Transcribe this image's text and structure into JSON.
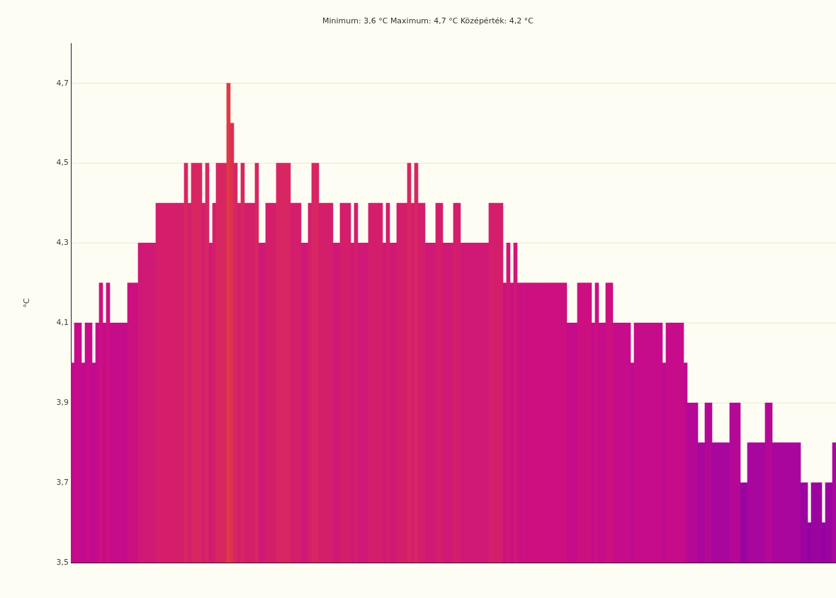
{
  "chart_data": {
    "type": "bar",
    "title": "Minimum: 3,6 °C Maximum: 4,7 °C Középérték: 4,2 °C",
    "ylabel": "°C",
    "categories": [
      null,
      null,
      null,
      null,
      null,
      null,
      null,
      null,
      null,
      null,
      null,
      null,
      null,
      null,
      null,
      null,
      null,
      null,
      null,
      null,
      null,
      null,
      null,
      null,
      null,
      null,
      null,
      null,
      null,
      null,
      null,
      null,
      null,
      null,
      null,
      null,
      null,
      null,
      null,
      null,
      null,
      null,
      null,
      null,
      null,
      null,
      null,
      null,
      null,
      null,
      null,
      null,
      null,
      null,
      null,
      null,
      null,
      null,
      null,
      null,
      null,
      null,
      null,
      null,
      null,
      null,
      null,
      null,
      null,
      null,
      null,
      null,
      null,
      null,
      null,
      null,
      null,
      null,
      null,
      null,
      null,
      null,
      null,
      null,
      null,
      null,
      null,
      null,
      null,
      null,
      null,
      null,
      null,
      null,
      null,
      null,
      null,
      null,
      null,
      null,
      null,
      null,
      null,
      null,
      null,
      null,
      null,
      null,
      null,
      null,
      null,
      null,
      null,
      null,
      null,
      null,
      null,
      null,
      null,
      null,
      null,
      null,
      null,
      null,
      null,
      null,
      null,
      null,
      null,
      null,
      null,
      null,
      null,
      null,
      null,
      null,
      null,
      null,
      null,
      null,
      null,
      null,
      null,
      null,
      null,
      null,
      null,
      null,
      null,
      null,
      null,
      null,
      null,
      null,
      null,
      null,
      null,
      null,
      null,
      null,
      null,
      null,
      null,
      null,
      null,
      null,
      null,
      null,
      null,
      null,
      null,
      null,
      null,
      null,
      null,
      null,
      null,
      null,
      null,
      null,
      null,
      null,
      null,
      null,
      null,
      null,
      null,
      null,
      null,
      null,
      null,
      null,
      null,
      null,
      null,
      null,
      null,
      null,
      null,
      null,
      null,
      null,
      null,
      null,
      null,
      null,
      null,
      null,
      null,
      null,
      null,
      null,
      null,
      null,
      null,
      null
    ],
    "values": [
      4.0,
      4.1,
      4.1,
      4.0,
      4.1,
      4.1,
      4.0,
      4.1,
      4.2,
      4.1,
      4.2,
      4.1,
      4.1,
      4.1,
      4.1,
      4.1,
      4.2,
      4.2,
      4.2,
      4.3,
      4.3,
      4.3,
      4.3,
      4.3,
      4.4,
      4.4,
      4.4,
      4.4,
      4.4,
      4.4,
      4.4,
      4.4,
      4.5,
      4.4,
      4.5,
      4.5,
      4.5,
      4.4,
      4.5,
      4.3,
      4.4,
      4.5,
      4.5,
      4.5,
      4.7,
      4.6,
      4.5,
      4.4,
      4.5,
      4.4,
      4.4,
      4.4,
      4.5,
      4.3,
      4.3,
      4.4,
      4.4,
      4.4,
      4.5,
      4.5,
      4.5,
      4.5,
      4.4,
      4.4,
      4.4,
      4.3,
      4.3,
      4.4,
      4.5,
      4.5,
      4.4,
      4.4,
      4.4,
      4.4,
      4.3,
      4.3,
      4.4,
      4.4,
      4.4,
      4.3,
      4.4,
      4.3,
      4.3,
      4.3,
      4.4,
      4.4,
      4.4,
      4.4,
      4.3,
      4.4,
      4.3,
      4.3,
      4.4,
      4.4,
      4.4,
      4.5,
      4.4,
      4.5,
      4.4,
      4.4,
      4.3,
      4.3,
      4.3,
      4.4,
      4.4,
      4.3,
      4.3,
      4.3,
      4.4,
      4.4,
      4.3,
      4.3,
      4.3,
      4.3,
      4.3,
      4.3,
      4.3,
      4.3,
      4.4,
      4.4,
      4.4,
      4.4,
      4.2,
      4.3,
      4.2,
      4.3,
      4.2,
      4.2,
      4.2,
      4.2,
      4.2,
      4.2,
      4.2,
      4.2,
      4.2,
      4.2,
      4.2,
      4.2,
      4.2,
      4.2,
      4.1,
      4.1,
      4.1,
      4.2,
      4.2,
      4.2,
      4.2,
      4.1,
      4.2,
      4.1,
      4.1,
      4.2,
      4.2,
      4.1,
      4.1,
      4.1,
      4.1,
      4.1,
      4.0,
      4.1,
      4.1,
      4.1,
      4.1,
      4.1,
      4.1,
      4.1,
      4.1,
      4.0,
      4.1,
      4.1,
      4.1,
      4.1,
      4.1,
      4.0,
      3.9,
      3.9,
      3.9,
      3.8,
      3.8,
      3.9,
      3.9,
      3.8,
      3.8,
      3.8,
      3.8,
      3.8,
      3.9,
      3.9,
      3.9,
      3.7,
      3.7,
      3.8,
      3.8,
      3.8,
      3.8,
      3.8,
      3.9,
      3.9,
      3.8,
      3.8,
      3.8,
      3.8,
      3.8,
      3.8,
      3.8,
      3.8,
      3.7,
      3.7,
      3.6,
      3.7,
      3.7,
      3.7,
      3.6,
      3.7,
      3.7,
      3.8
    ],
    "colors": [
      "#c00a90",
      "#c60c8a",
      "#c60c8a",
      "#c00a90",
      "#c60c8a",
      "#c60c8a",
      "#c00a90",
      "#c60c8a",
      "#cc1080",
      "#c60c8a",
      "#cc1080",
      "#c60c8a",
      "#c60c8a",
      "#c60c8a",
      "#c60c8a",
      "#c60c8a",
      "#cc1080",
      "#cc1080",
      "#cc1080",
      "#d01876",
      "#d01876",
      "#d01876",
      "#d01876",
      "#d01876",
      "#d41e6c",
      "#d41e6c",
      "#d41e6c",
      "#d41e6c",
      "#d41e6c",
      "#d41e6c",
      "#d41e6c",
      "#d41e6c",
      "#d82662",
      "#d41e6c",
      "#d82662",
      "#d82662",
      "#d82662",
      "#d41e6c",
      "#d82662",
      "#d01876",
      "#d41e6c",
      "#d82662",
      "#d82662",
      "#d82662",
      "#e03a44",
      "#dc3052",
      "#d82662",
      "#d41e6c",
      "#d82662",
      "#d41e6c",
      "#d41e6c",
      "#d41e6c",
      "#d82662",
      "#d01876",
      "#d01876",
      "#d41e6c",
      "#d41e6c",
      "#d41e6c",
      "#d82662",
      "#d82662",
      "#d82662",
      "#d82662",
      "#d41e6c",
      "#d41e6c",
      "#d41e6c",
      "#d01876",
      "#d01876",
      "#d41e6c",
      "#d82662",
      "#d82662",
      "#d41e6c",
      "#d41e6c",
      "#d41e6c",
      "#d41e6c",
      "#d01876",
      "#d01876",
      "#d41e6c",
      "#d41e6c",
      "#d41e6c",
      "#d01876",
      "#d41e6c",
      "#d01876",
      "#d01876",
      "#d01876",
      "#d41e6c",
      "#d41e6c",
      "#d41e6c",
      "#d41e6c",
      "#d01876",
      "#d41e6c",
      "#d01876",
      "#d01876",
      "#d41e6c",
      "#d41e6c",
      "#d41e6c",
      "#d82662",
      "#d41e6c",
      "#d82662",
      "#d41e6c",
      "#d41e6c",
      "#d01876",
      "#d01876",
      "#d01876",
      "#d41e6c",
      "#d41e6c",
      "#d01876",
      "#d01876",
      "#d01876",
      "#d41e6c",
      "#d41e6c",
      "#d01876",
      "#d01876",
      "#d01876",
      "#d01876",
      "#d01876",
      "#d01876",
      "#d01876",
      "#d01876",
      "#d41e6c",
      "#d41e6c",
      "#d41e6c",
      "#d41e6c",
      "#cc1080",
      "#d01876",
      "#cc1080",
      "#d01876",
      "#cc1080",
      "#cc1080",
      "#cc1080",
      "#cc1080",
      "#cc1080",
      "#cc1080",
      "#cc1080",
      "#cc1080",
      "#cc1080",
      "#cc1080",
      "#cc1080",
      "#cc1080",
      "#cc1080",
      "#cc1080",
      "#c60c8a",
      "#c60c8a",
      "#c60c8a",
      "#cc1080",
      "#cc1080",
      "#cc1080",
      "#cc1080",
      "#c60c8a",
      "#cc1080",
      "#c60c8a",
      "#c60c8a",
      "#cc1080",
      "#cc1080",
      "#c60c8a",
      "#c60c8a",
      "#c60c8a",
      "#c60c8a",
      "#c60c8a",
      "#c00a90",
      "#c60c8a",
      "#c60c8a",
      "#c60c8a",
      "#c60c8a",
      "#c60c8a",
      "#c60c8a",
      "#c60c8a",
      "#c60c8a",
      "#c00a90",
      "#c60c8a",
      "#c60c8a",
      "#c60c8a",
      "#c60c8a",
      "#c60c8a",
      "#c00a90",
      "#b40896",
      "#b40896",
      "#b40896",
      "#a8069c",
      "#a8069c",
      "#b40896",
      "#b40896",
      "#a8069c",
      "#a8069c",
      "#a8069c",
      "#a8069c",
      "#a8069c",
      "#b40896",
      "#b40896",
      "#b40896",
      "#9c04a0",
      "#9c04a0",
      "#a8069c",
      "#a8069c",
      "#a8069c",
      "#a8069c",
      "#a8069c",
      "#b40896",
      "#b40896",
      "#a8069c",
      "#a8069c",
      "#a8069c",
      "#a8069c",
      "#a8069c",
      "#a8069c",
      "#a8069c",
      "#a8069c",
      "#9c04a0",
      "#9c04a0",
      "#9400a4",
      "#9c04a0",
      "#9c04a0",
      "#9c04a0",
      "#9400a4",
      "#9c04a0",
      "#9c04a0",
      "#a8069c"
    ],
    "ylim": [
      3.5,
      4.8
    ],
    "yticks": [
      {
        "value": 3.5,
        "label": "3,5"
      },
      {
        "value": 3.7,
        "label": "3,7"
      },
      {
        "value": 3.9,
        "label": "3,9"
      },
      {
        "value": 4.1,
        "label": "4,1"
      },
      {
        "value": 4.3,
        "label": "4,3"
      },
      {
        "value": 4.5,
        "label": "4,5"
      },
      {
        "value": 4.7,
        "label": "4,7"
      }
    ],
    "grid": "y",
    "legend": false,
    "tick_labels": "y"
  }
}
